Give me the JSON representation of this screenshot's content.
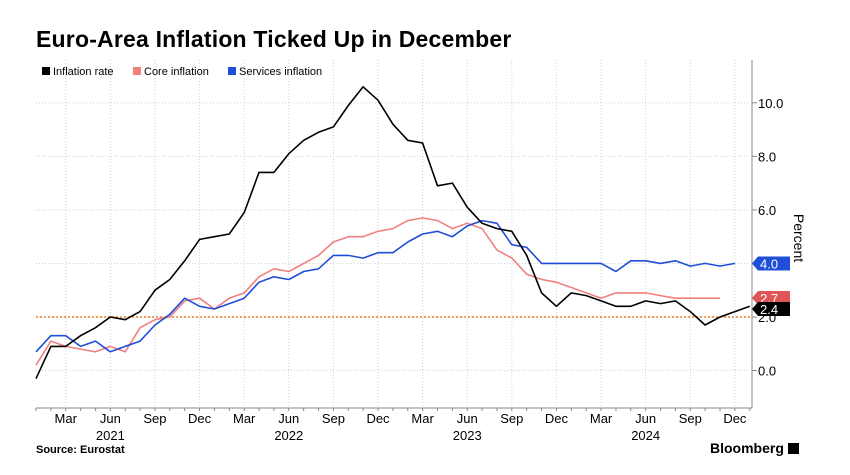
{
  "title": "Euro-Area Inflation Ticked Up in December",
  "source": "Source: Eurostat",
  "brand": "Bloomberg",
  "chart_data": {
    "type": "line",
    "ylabel": "Percent",
    "ylim": [
      -1.4,
      11.6
    ],
    "yticks": [
      0,
      2,
      4,
      6,
      8,
      10
    ],
    "ytick_labels": [
      "0.0",
      "2.0",
      "4.0",
      "6.0",
      "8.0",
      "10.0"
    ],
    "x_labels": [
      "Mar",
      "Jun",
      "Sep",
      "Dec",
      "Mar",
      "Jun",
      "Sep",
      "Dec",
      "Mar",
      "Jun",
      "Sep",
      "Dec",
      "Mar",
      "Jun",
      "Sep",
      "Dec"
    ],
    "x_label_months": [
      2,
      5,
      8,
      11,
      14,
      17,
      20,
      23,
      26,
      29,
      32,
      35,
      38,
      41,
      44,
      47
    ],
    "year_labels": [
      "2021",
      "2022",
      "2023",
      "2024"
    ],
    "year_label_months": [
      5,
      17,
      29,
      41
    ],
    "x_start": "Jan 2021",
    "reference_line": 2.0,
    "grid": true,
    "legend_position": "top-left",
    "series": [
      {
        "name": "Inflation rate",
        "color": "#000000",
        "values": [
          -0.3,
          0.9,
          0.9,
          1.3,
          1.6,
          2.0,
          1.9,
          2.2,
          3.0,
          3.4,
          4.1,
          4.9,
          5.0,
          5.1,
          5.9,
          7.4,
          7.4,
          8.1,
          8.6,
          8.9,
          9.1,
          9.9,
          10.6,
          10.1,
          9.2,
          8.6,
          8.5,
          6.9,
          7.0,
          6.1,
          5.5,
          5.3,
          5.2,
          4.3,
          2.9,
          2.4,
          2.9,
          2.8,
          2.6,
          2.4,
          2.4,
          2.6,
          2.5,
          2.6,
          2.2,
          1.7,
          2.0,
          2.2,
          2.4
        ],
        "end_label": "2.4"
      },
      {
        "name": "Core inflation",
        "color": "#f08080",
        "values": [
          0.2,
          1.1,
          0.9,
          0.8,
          0.7,
          0.9,
          0.7,
          1.6,
          1.9,
          2.0,
          2.6,
          2.7,
          2.3,
          2.7,
          2.9,
          3.5,
          3.8,
          3.7,
          4.0,
          4.3,
          4.8,
          5.0,
          5.0,
          5.2,
          5.3,
          5.6,
          5.7,
          5.6,
          5.3,
          5.5,
          5.3,
          4.5,
          4.2,
          3.6,
          3.4,
          3.3,
          3.1,
          2.9,
          2.7,
          2.9,
          2.9,
          2.9,
          2.8,
          2.7,
          2.7,
          2.7,
          2.7
        ],
        "end_label": "2.7"
      },
      {
        "name": "Services inflation",
        "color": "#1f4fd8",
        "values": [
          0.7,
          1.3,
          1.3,
          0.9,
          1.1,
          0.7,
          0.9,
          1.1,
          1.7,
          2.1,
          2.7,
          2.4,
          2.3,
          2.5,
          2.7,
          3.3,
          3.5,
          3.4,
          3.7,
          3.8,
          4.3,
          4.3,
          4.2,
          4.4,
          4.4,
          4.8,
          5.1,
          5.2,
          5.0,
          5.4,
          5.6,
          5.5,
          4.7,
          4.6,
          4.0,
          4.0,
          4.0,
          4.0,
          4.0,
          3.7,
          4.1,
          4.1,
          4.0,
          4.1,
          3.9,
          4.0,
          3.9,
          4.0
        ],
        "end_label": "4.0"
      }
    ]
  }
}
